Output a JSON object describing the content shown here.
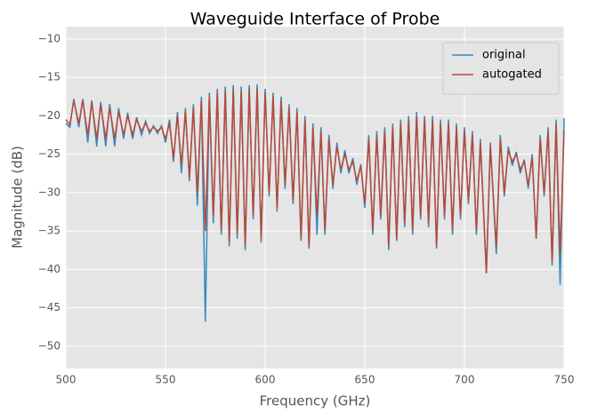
{
  "chart_data": {
    "type": "line",
    "title": "Waveguide Interface of Probe",
    "xlabel": "Frequency (GHz)",
    "ylabel": "Magnitude (dB)",
    "x": [
      500,
      502,
      504,
      506.5,
      508.5,
      511,
      513,
      515.5,
      517.5,
      520,
      522,
      524.5,
      526.5,
      529,
      531,
      533.5,
      535.5,
      538,
      540,
      542,
      544,
      546,
      548,
      550,
      552,
      554,
      556,
      558,
      560,
      562,
      564,
      566,
      568,
      570,
      572,
      574,
      576,
      578,
      580,
      582,
      584,
      586,
      588,
      590,
      592,
      594,
      596,
      598,
      600,
      602,
      604,
      606,
      608,
      610,
      612,
      614,
      616,
      618,
      620,
      622,
      624,
      626,
      628,
      630,
      632,
      634,
      636,
      638,
      640,
      642,
      644,
      646,
      648,
      650,
      652,
      654,
      656,
      658,
      660,
      662,
      664,
      666,
      668,
      670,
      672,
      674,
      676,
      678,
      680,
      682,
      684,
      686,
      688,
      690,
      692,
      694,
      696,
      698,
      700,
      702,
      704,
      706,
      708,
      711,
      713,
      716,
      718,
      720,
      722,
      724,
      726,
      728,
      730,
      732,
      734,
      736,
      738,
      740,
      742,
      744,
      746,
      748,
      750
    ],
    "series": [
      {
        "name": "original",
        "color": "#348abd",
        "values": [
          -21,
          -21.5,
          -17.8,
          -21.5,
          -17.8,
          -23.5,
          -18,
          -24,
          -18.2,
          -24,
          -18.5,
          -24,
          -19,
          -23,
          -19.6,
          -23,
          -20.2,
          -22.5,
          -20.7,
          -22.3,
          -21.3,
          -22.3,
          -21.3,
          -23.5,
          -20.5,
          -26,
          -19.5,
          -27.5,
          -19,
          -28.5,
          -18.5,
          -31.7,
          -17.5,
          -46.8,
          -17,
          -34,
          -16.5,
          -35.5,
          -16.2,
          -37,
          -16,
          -36,
          -16.2,
          -37.5,
          -16,
          -33.5,
          -15.9,
          -36.5,
          -16.5,
          -30.5,
          -17,
          -32.5,
          -17.5,
          -29.5,
          -18.5,
          -31.5,
          -19,
          -36.3,
          -20,
          -37.3,
          -21,
          -35.5,
          -21.5,
          -35.5,
          -22.5,
          -29.5,
          -23.5,
          -27.5,
          -24.5,
          -27.5,
          -25.5,
          -29,
          -26.3,
          -32,
          -22.5,
          -35.5,
          -22,
          -33.5,
          -21.5,
          -37.5,
          -21,
          -36.3,
          -20.5,
          -34.5,
          -20,
          -35.5,
          -19.5,
          -33.5,
          -20,
          -34.5,
          -20,
          -37.3,
          -20.5,
          -33.5,
          -20.5,
          -35.5,
          -21,
          -33.5,
          -21.5,
          -31.5,
          -22,
          -35.5,
          -23,
          -40.5,
          -23.5,
          -38,
          -22.5,
          -30.5,
          -24,
          -26.5,
          -24.7,
          -27.5,
          -25.7,
          -29.5,
          -25,
          -36,
          -22.5,
          -30.5,
          -21.5,
          -39.5,
          -20.5,
          -42,
          -20.3
        ]
      },
      {
        "name": "autogated",
        "color": "#b8493a",
        "values": [
          -20.5,
          -21.2,
          -18,
          -21,
          -18,
          -22.5,
          -18.3,
          -23,
          -18.6,
          -23,
          -19,
          -23,
          -19.5,
          -22.5,
          -20,
          -22.5,
          -20.5,
          -22,
          -21,
          -22,
          -21.5,
          -22,
          -21.5,
          -23,
          -21,
          -25.5,
          -20,
          -26.5,
          -19.5,
          -28,
          -19,
          -30,
          -18,
          -35,
          -17.5,
          -33,
          -17,
          -35,
          -16.8,
          -36.5,
          -16.5,
          -35.5,
          -16.8,
          -37,
          -16.5,
          -33,
          -16.5,
          -36,
          -17,
          -30,
          -17.5,
          -32,
          -18,
          -29,
          -19,
          -31,
          -19.5,
          -36,
          -20.5,
          -37,
          -21.5,
          -33,
          -22,
          -35,
          -23,
          -29,
          -24,
          -27,
          -25,
          -27,
          -26,
          -28.5,
          -26.5,
          -31.5,
          -23,
          -35,
          -22.5,
          -33,
          -22,
          -37,
          -21.5,
          -36,
          -21,
          -34,
          -20.5,
          -35,
          -20,
          -33,
          -20.5,
          -34,
          -20.5,
          -37,
          -21,
          -33,
          -21,
          -35,
          -21.5,
          -33,
          -22,
          -31,
          -22.5,
          -35,
          -23.5,
          -40.5,
          -24,
          -37,
          -23,
          -30,
          -24.5,
          -26,
          -25,
          -27,
          -26,
          -29,
          -25.5,
          -36,
          -23,
          -30,
          -22,
          -39,
          -21,
          -38,
          -22
        ]
      }
    ],
    "xlim": [
      500,
      750
    ],
    "xticks": [
      500,
      550,
      600,
      650,
      700,
      750
    ],
    "ylim": [
      -52.9,
      -8.4
    ],
    "yticks": [
      {
        "value": -10,
        "label": "−10"
      },
      {
        "value": -15,
        "label": "−15"
      },
      {
        "value": -20,
        "label": "−20"
      },
      {
        "value": -25,
        "label": "−25"
      },
      {
        "value": -30,
        "label": "−30"
      },
      {
        "value": -35,
        "label": "−35"
      },
      {
        "value": -40,
        "label": "−40"
      },
      {
        "value": -45,
        "label": "−45"
      },
      {
        "value": -50,
        "label": "−50"
      }
    ],
    "grid": true,
    "legend": "upper right"
  }
}
